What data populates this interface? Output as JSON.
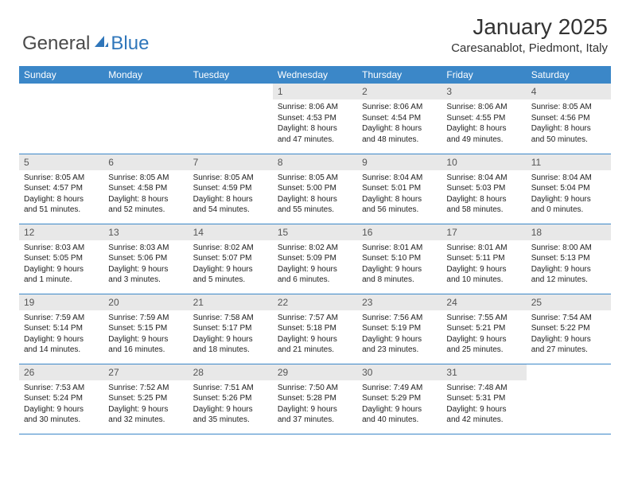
{
  "logo": {
    "general": "General",
    "blue": "Blue"
  },
  "header": {
    "month_title": "January 2025",
    "location": "Caresanablot, Piedmont, Italy"
  },
  "colors": {
    "header_bg": "#3b87c8",
    "header_text": "#ffffff",
    "daynum_bg": "#e8e8e8",
    "row_border": "#3b87c8",
    "logo_blue": "#2f76ba",
    "logo_gray": "#4a4a4a"
  },
  "weekdays": [
    "Sunday",
    "Monday",
    "Tuesday",
    "Wednesday",
    "Thursday",
    "Friday",
    "Saturday"
  ],
  "weeks": [
    [
      null,
      null,
      null,
      {
        "n": "1",
        "l1": "Sunrise: 8:06 AM",
        "l2": "Sunset: 4:53 PM",
        "l3": "Daylight: 8 hours",
        "l4": "and 47 minutes."
      },
      {
        "n": "2",
        "l1": "Sunrise: 8:06 AM",
        "l2": "Sunset: 4:54 PM",
        "l3": "Daylight: 8 hours",
        "l4": "and 48 minutes."
      },
      {
        "n": "3",
        "l1": "Sunrise: 8:06 AM",
        "l2": "Sunset: 4:55 PM",
        "l3": "Daylight: 8 hours",
        "l4": "and 49 minutes."
      },
      {
        "n": "4",
        "l1": "Sunrise: 8:05 AM",
        "l2": "Sunset: 4:56 PM",
        "l3": "Daylight: 8 hours",
        "l4": "and 50 minutes."
      }
    ],
    [
      {
        "n": "5",
        "l1": "Sunrise: 8:05 AM",
        "l2": "Sunset: 4:57 PM",
        "l3": "Daylight: 8 hours",
        "l4": "and 51 minutes."
      },
      {
        "n": "6",
        "l1": "Sunrise: 8:05 AM",
        "l2": "Sunset: 4:58 PM",
        "l3": "Daylight: 8 hours",
        "l4": "and 52 minutes."
      },
      {
        "n": "7",
        "l1": "Sunrise: 8:05 AM",
        "l2": "Sunset: 4:59 PM",
        "l3": "Daylight: 8 hours",
        "l4": "and 54 minutes."
      },
      {
        "n": "8",
        "l1": "Sunrise: 8:05 AM",
        "l2": "Sunset: 5:00 PM",
        "l3": "Daylight: 8 hours",
        "l4": "and 55 minutes."
      },
      {
        "n": "9",
        "l1": "Sunrise: 8:04 AM",
        "l2": "Sunset: 5:01 PM",
        "l3": "Daylight: 8 hours",
        "l4": "and 56 minutes."
      },
      {
        "n": "10",
        "l1": "Sunrise: 8:04 AM",
        "l2": "Sunset: 5:03 PM",
        "l3": "Daylight: 8 hours",
        "l4": "and 58 minutes."
      },
      {
        "n": "11",
        "l1": "Sunrise: 8:04 AM",
        "l2": "Sunset: 5:04 PM",
        "l3": "Daylight: 9 hours",
        "l4": "and 0 minutes."
      }
    ],
    [
      {
        "n": "12",
        "l1": "Sunrise: 8:03 AM",
        "l2": "Sunset: 5:05 PM",
        "l3": "Daylight: 9 hours",
        "l4": "and 1 minute."
      },
      {
        "n": "13",
        "l1": "Sunrise: 8:03 AM",
        "l2": "Sunset: 5:06 PM",
        "l3": "Daylight: 9 hours",
        "l4": "and 3 minutes."
      },
      {
        "n": "14",
        "l1": "Sunrise: 8:02 AM",
        "l2": "Sunset: 5:07 PM",
        "l3": "Daylight: 9 hours",
        "l4": "and 5 minutes."
      },
      {
        "n": "15",
        "l1": "Sunrise: 8:02 AM",
        "l2": "Sunset: 5:09 PM",
        "l3": "Daylight: 9 hours",
        "l4": "and 6 minutes."
      },
      {
        "n": "16",
        "l1": "Sunrise: 8:01 AM",
        "l2": "Sunset: 5:10 PM",
        "l3": "Daylight: 9 hours",
        "l4": "and 8 minutes."
      },
      {
        "n": "17",
        "l1": "Sunrise: 8:01 AM",
        "l2": "Sunset: 5:11 PM",
        "l3": "Daylight: 9 hours",
        "l4": "and 10 minutes."
      },
      {
        "n": "18",
        "l1": "Sunrise: 8:00 AM",
        "l2": "Sunset: 5:13 PM",
        "l3": "Daylight: 9 hours",
        "l4": "and 12 minutes."
      }
    ],
    [
      {
        "n": "19",
        "l1": "Sunrise: 7:59 AM",
        "l2": "Sunset: 5:14 PM",
        "l3": "Daylight: 9 hours",
        "l4": "and 14 minutes."
      },
      {
        "n": "20",
        "l1": "Sunrise: 7:59 AM",
        "l2": "Sunset: 5:15 PM",
        "l3": "Daylight: 9 hours",
        "l4": "and 16 minutes."
      },
      {
        "n": "21",
        "l1": "Sunrise: 7:58 AM",
        "l2": "Sunset: 5:17 PM",
        "l3": "Daylight: 9 hours",
        "l4": "and 18 minutes."
      },
      {
        "n": "22",
        "l1": "Sunrise: 7:57 AM",
        "l2": "Sunset: 5:18 PM",
        "l3": "Daylight: 9 hours",
        "l4": "and 21 minutes."
      },
      {
        "n": "23",
        "l1": "Sunrise: 7:56 AM",
        "l2": "Sunset: 5:19 PM",
        "l3": "Daylight: 9 hours",
        "l4": "and 23 minutes."
      },
      {
        "n": "24",
        "l1": "Sunrise: 7:55 AM",
        "l2": "Sunset: 5:21 PM",
        "l3": "Daylight: 9 hours",
        "l4": "and 25 minutes."
      },
      {
        "n": "25",
        "l1": "Sunrise: 7:54 AM",
        "l2": "Sunset: 5:22 PM",
        "l3": "Daylight: 9 hours",
        "l4": "and 27 minutes."
      }
    ],
    [
      {
        "n": "26",
        "l1": "Sunrise: 7:53 AM",
        "l2": "Sunset: 5:24 PM",
        "l3": "Daylight: 9 hours",
        "l4": "and 30 minutes."
      },
      {
        "n": "27",
        "l1": "Sunrise: 7:52 AM",
        "l2": "Sunset: 5:25 PM",
        "l3": "Daylight: 9 hours",
        "l4": "and 32 minutes."
      },
      {
        "n": "28",
        "l1": "Sunrise: 7:51 AM",
        "l2": "Sunset: 5:26 PM",
        "l3": "Daylight: 9 hours",
        "l4": "and 35 minutes."
      },
      {
        "n": "29",
        "l1": "Sunrise: 7:50 AM",
        "l2": "Sunset: 5:28 PM",
        "l3": "Daylight: 9 hours",
        "l4": "and 37 minutes."
      },
      {
        "n": "30",
        "l1": "Sunrise: 7:49 AM",
        "l2": "Sunset: 5:29 PM",
        "l3": "Daylight: 9 hours",
        "l4": "and 40 minutes."
      },
      {
        "n": "31",
        "l1": "Sunrise: 7:48 AM",
        "l2": "Sunset: 5:31 PM",
        "l3": "Daylight: 9 hours",
        "l4": "and 42 minutes."
      },
      null
    ]
  ]
}
